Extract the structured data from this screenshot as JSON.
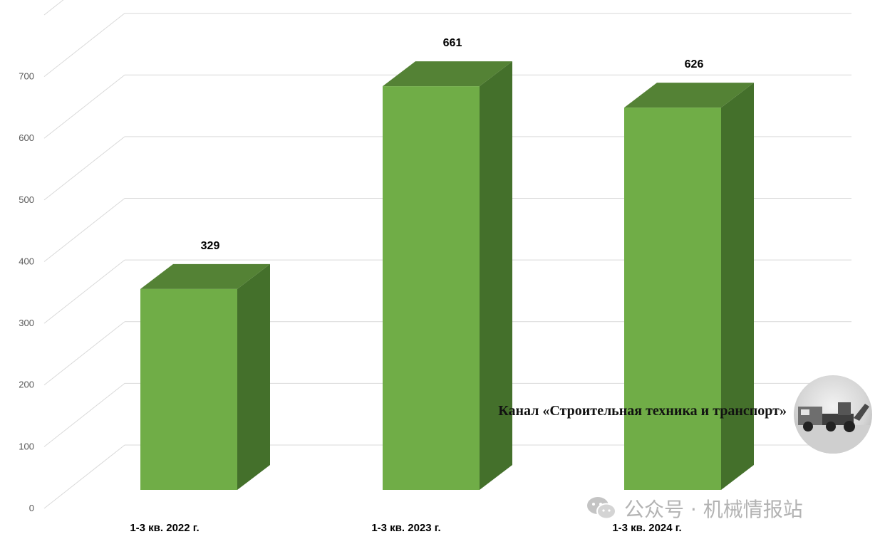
{
  "chart_data": {
    "type": "bar",
    "categories": [
      "1-3 кв. 2022 г.",
      "1-3 кв. 2023 г.",
      "1-3 кв. 2024 г."
    ],
    "values": [
      329,
      661,
      626
    ],
    "value_labels": [
      "329",
      "661",
      "626"
    ],
    "title": "",
    "xlabel": "",
    "ylabel": "",
    "ylim": [
      0,
      800
    ],
    "yticks": [
      "0",
      "100",
      "200",
      "300",
      "400",
      "500",
      "600",
      "700"
    ],
    "grid": true,
    "style": "3d-column",
    "colors": {
      "front": "#70ad47",
      "top": "#548235",
      "side": "#44702b"
    }
  },
  "watermark": {
    "caption": "Канал «Строительная техника и транспорт»",
    "footer_text": "公众号 · 机械情报站",
    "footer_icon": "wechat-icon",
    "photo_icon": "construction-vehicle-photo-icon"
  }
}
